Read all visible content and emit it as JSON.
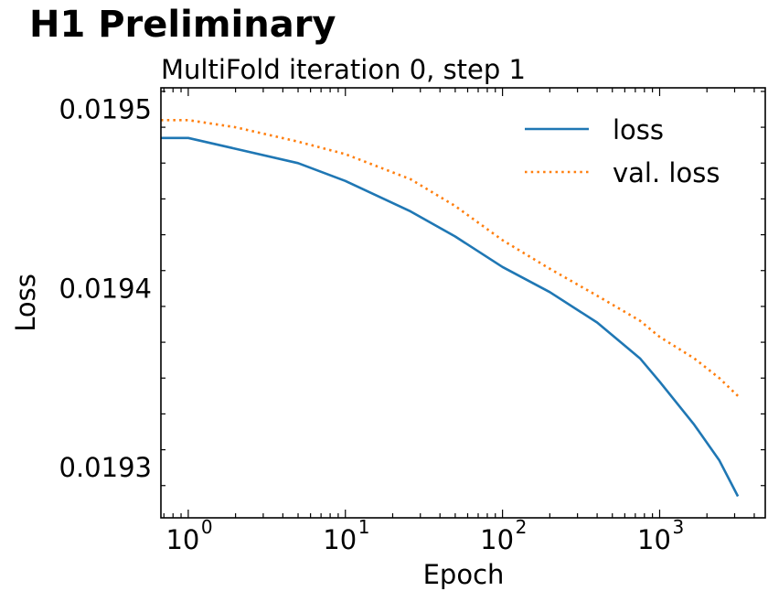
{
  "banner": "H1 Preliminary",
  "chart_data": {
    "type": "line",
    "title": "MultiFold iteration 0, step 1",
    "xlabel": "Epoch",
    "ylabel": "Loss",
    "xscale": "log",
    "xlim": [
      0.67,
      4700
    ],
    "ylim": [
      0.019272,
      0.019512
    ],
    "x_ticks": [
      {
        "value": 1,
        "base": "10",
        "exp": "0"
      },
      {
        "value": 10,
        "base": "10",
        "exp": "1"
      },
      {
        "value": 100,
        "base": "10",
        "exp": "2"
      },
      {
        "value": 1000,
        "base": "10",
        "exp": "3"
      }
    ],
    "y_ticks": [
      {
        "value": 0.0195,
        "label": "0.0195"
      },
      {
        "value": 0.0194,
        "label": "0.0194"
      },
      {
        "value": 0.0193,
        "label": "0.0193"
      }
    ],
    "grid": false,
    "legend_position": "top-right",
    "series": [
      {
        "name": "loss",
        "color": "#1f77b4",
        "style": "solid",
        "x": [
          0.67,
          1,
          2,
          5,
          10,
          26,
          50,
          100,
          200,
          400,
          750,
          1000,
          1660,
          2400,
          3150
        ],
        "y": [
          0.019484,
          0.019484,
          0.019478,
          0.01947,
          0.01946,
          0.019443,
          0.019429,
          0.019412,
          0.019398,
          0.019381,
          0.019361,
          0.019348,
          0.019324,
          0.019304,
          0.019284
        ]
      },
      {
        "name": "val. loss",
        "color": "#ff7f0e",
        "style": "dotted",
        "x": [
          0.67,
          1,
          2,
          5,
          10,
          26,
          50,
          100,
          200,
          400,
          750,
          1000,
          1660,
          2400,
          3150
        ],
        "y": [
          0.019494,
          0.019494,
          0.01949,
          0.019482,
          0.019475,
          0.019461,
          0.019446,
          0.019427,
          0.019411,
          0.019396,
          0.019382,
          0.019373,
          0.019361,
          0.01935,
          0.01934
        ]
      }
    ]
  }
}
